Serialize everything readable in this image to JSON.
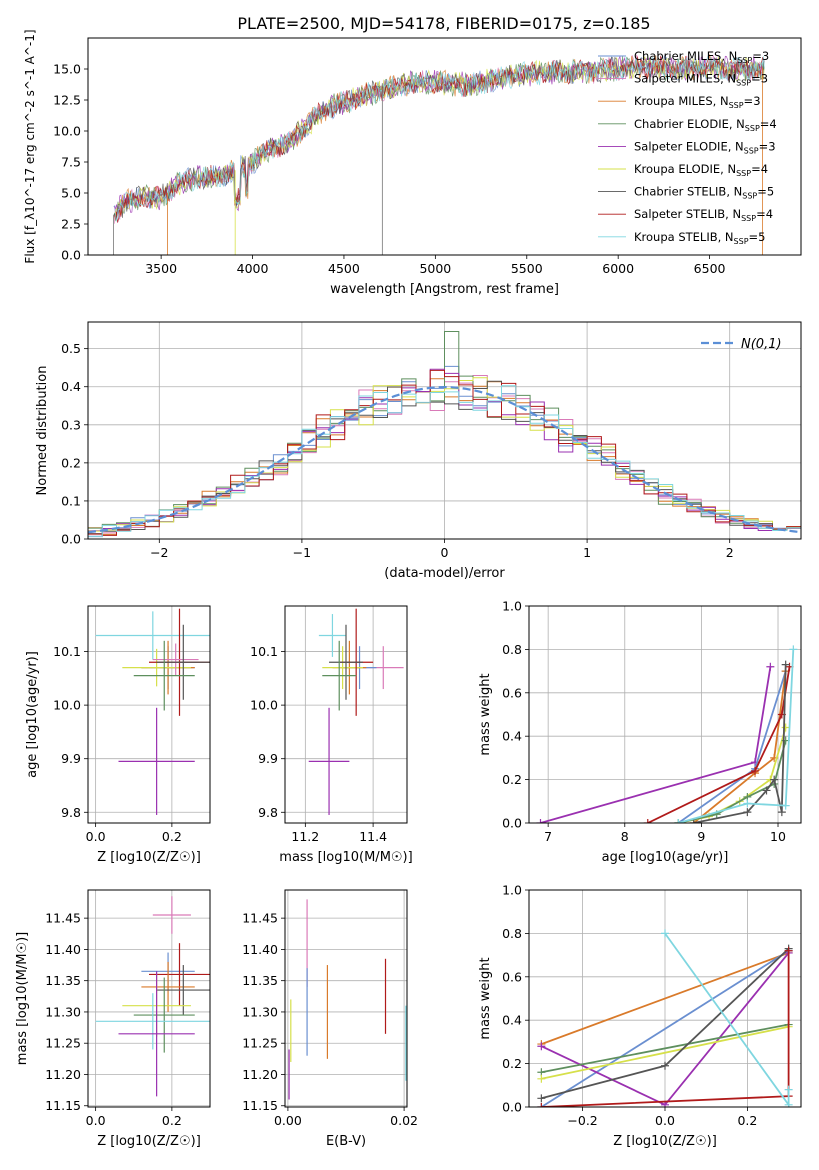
{
  "title": "PLATE=2500, MJD=54178, FIBERID=0175, z=0.185",
  "colors": {
    "Chabrier MILES": "#6a8fd0",
    "Salpeter MILES": "#d97ab8",
    "Kroupa MILES": "#d97a2a",
    "Chabrier ELODIE": "#5e8f5e",
    "Salpeter ELODIE": "#9a30b0",
    "Kroupa ELODIE": "#d6e04a",
    "Chabrier STELIB": "#555555",
    "Salpeter STELIB": "#b01a1a",
    "Kroupa STELIB": "#7fd6e0"
  },
  "legend": [
    {
      "name": "Chabrier MILES",
      "nssp": "3"
    },
    {
      "name": "Salpeter MILES",
      "nssp": "3"
    },
    {
      "name": "Kroupa MILES",
      "nssp": "3"
    },
    {
      "name": "Chabrier ELODIE",
      "nssp": "4"
    },
    {
      "name": "Salpeter ELODIE",
      "nssp": "3"
    },
    {
      "name": "Kroupa ELODIE",
      "nssp": "4"
    },
    {
      "name": "Chabrier STELIB",
      "nssp": "5"
    },
    {
      "name": "Salpeter STELIB",
      "nssp": "4"
    },
    {
      "name": "Kroupa STELIB",
      "nssp": "5"
    }
  ],
  "chart_data": [
    {
      "id": "spectrum",
      "type": "line",
      "xlabel": "wavelength [Angstrom, rest frame]",
      "ylabel": "Flux [f_λ10^-17 erg cm^-2 s^-1 A^-1]",
      "xlim": [
        3100,
        7000
      ],
      "ylim": [
        0,
        17.5
      ],
      "xticks": [
        3500,
        4000,
        4500,
        5000,
        5500,
        6000,
        6500
      ],
      "yticks": [
        0.0,
        2.5,
        5.0,
        7.5,
        10.0,
        12.5,
        15.0
      ],
      "legend_placement": "right",
      "continuum": [
        [
          3240,
          3.2
        ],
        [
          3300,
          4.2
        ],
        [
          3400,
          4.8
        ],
        [
          3500,
          4.6
        ],
        [
          3600,
          5.8
        ],
        [
          3700,
          6.3
        ],
        [
          3800,
          6.2
        ],
        [
          3900,
          6.8
        ],
        [
          4000,
          7.5
        ],
        [
          4100,
          8.6
        ],
        [
          4200,
          9.1
        ],
        [
          4300,
          10.5
        ],
        [
          4400,
          11.8
        ],
        [
          4500,
          12.3
        ],
        [
          4600,
          12.8
        ],
        [
          4700,
          13.3
        ],
        [
          4800,
          13.6
        ],
        [
          4900,
          13.9
        ],
        [
          5000,
          14.0
        ],
        [
          5100,
          13.8
        ],
        [
          5200,
          13.7
        ],
        [
          5300,
          14.1
        ],
        [
          5400,
          14.4
        ],
        [
          5500,
          14.6
        ],
        [
          5600,
          14.7
        ],
        [
          5700,
          14.8
        ],
        [
          5800,
          14.8
        ],
        [
          5900,
          14.9
        ],
        [
          6000,
          15.0
        ],
        [
          6100,
          15.2
        ],
        [
          6200,
          15.1
        ],
        [
          6300,
          15.0
        ],
        [
          6400,
          15.1
        ],
        [
          6500,
          15.2
        ],
        [
          6600,
          15.0
        ],
        [
          6700,
          15.0
        ],
        [
          6800,
          15.1
        ]
      ]
    },
    {
      "id": "residuals",
      "type": "bar",
      "xlabel": "(data-model)/error",
      "ylabel": "Normed distribution",
      "xlim": [
        -2.5,
        2.5
      ],
      "ylim": [
        0,
        0.57
      ],
      "xticks": [
        -2,
        -1,
        0,
        1,
        2
      ],
      "yticks": [
        0.0,
        0.1,
        0.2,
        0.3,
        0.4,
        0.5
      ],
      "grid": true,
      "legend_label": "N(0,1)",
      "legend_placement": "top-right"
    },
    {
      "id": "age_vs_Z",
      "type": "scatter",
      "xlabel": "Z [log10(Z/Z☉)]",
      "ylabel": "age  [log10(age/yr)]",
      "xlim": [
        -0.02,
        0.3
      ],
      "ylim": [
        9.78,
        10.185
      ],
      "xticks": [
        0.0,
        0.2
      ],
      "yticks": [
        9.8,
        9.9,
        10.0,
        10.1
      ],
      "grid": true,
      "points": [
        {
          "s": "Kroupa STELIB",
          "x": 0.15,
          "xe": 0.15,
          "y": 10.13,
          "ye": 0.045
        },
        {
          "s": "Chabrier MILES",
          "x": 0.19,
          "xe": 0.07,
          "y": 10.07,
          "ye": 0.04
        },
        {
          "s": "Kroupa MILES",
          "x": 0.19,
          "xe": 0.07,
          "y": 10.07,
          "ye": 0.05
        },
        {
          "s": "Kroupa ELODIE",
          "x": 0.16,
          "xe": 0.09,
          "y": 10.07,
          "ye": 0.035
        },
        {
          "s": "Salpeter STELIB",
          "x": 0.22,
          "xe": 0.08,
          "y": 10.08,
          "ye": 0.1
        },
        {
          "s": "Salpeter MILES",
          "x": 0.21,
          "xe": 0.06,
          "y": 10.085,
          "ye": 0.03
        },
        {
          "s": "Chabrier STELIB",
          "x": 0.23,
          "xe": 0.07,
          "y": 10.08,
          "ye": 0.07
        },
        {
          "s": "Chabrier ELODIE",
          "x": 0.18,
          "xe": 0.08,
          "y": 10.055,
          "ye": 0.065
        },
        {
          "s": "Salpeter ELODIE",
          "x": 0.16,
          "xe": 0.1,
          "y": 9.895,
          "ye": 0.1
        }
      ]
    },
    {
      "id": "age_vs_mass",
      "type": "scatter",
      "xlabel": "mass [log10(M/M☉)]",
      "ylabel": "",
      "xlim": [
        11.14,
        11.5
      ],
      "ylim": [
        9.78,
        10.185
      ],
      "xticks": [
        11.2,
        11.4
      ],
      "yticks": [
        9.8,
        9.9,
        10.0,
        10.1
      ],
      "grid": true,
      "points": [
        {
          "s": "Kroupa STELIB",
          "x": 11.28,
          "xe": 0.04,
          "y": 10.13,
          "ye": 0.04
        },
        {
          "s": "Salpeter MILES",
          "x": 11.43,
          "xe": 0.06,
          "y": 10.07,
          "ye": 0.04
        },
        {
          "s": "Chabrier MILES",
          "x": 11.36,
          "xe": 0.05,
          "y": 10.07,
          "ye": 0.04
        },
        {
          "s": "Kroupa MILES",
          "x": 11.33,
          "xe": 0.05,
          "y": 10.07,
          "ye": 0.05
        },
        {
          "s": "Kroupa ELODIE",
          "x": 11.31,
          "xe": 0.06,
          "y": 10.07,
          "ye": 0.04
        },
        {
          "s": "Salpeter STELIB",
          "x": 11.35,
          "xe": 0.05,
          "y": 10.08,
          "ye": 0.1
        },
        {
          "s": "Chabrier STELIB",
          "x": 11.32,
          "xe": 0.05,
          "y": 10.08,
          "ye": 0.07
        },
        {
          "s": "Chabrier ELODIE",
          "x": 11.3,
          "xe": 0.05,
          "y": 10.055,
          "ye": 0.065
        },
        {
          "s": "Salpeter ELODIE",
          "x": 11.27,
          "xe": 0.06,
          "y": 9.895,
          "ye": 0.1
        }
      ]
    },
    {
      "id": "mw_vs_age",
      "type": "line",
      "xlabel": "age  [log10(age/yr)]",
      "ylabel": "mass weight",
      "xlim": [
        6.75,
        10.3
      ],
      "ylim": [
        0,
        1
      ],
      "xticks": [
        7,
        8,
        9,
        10
      ],
      "yticks": [
        0.0,
        0.2,
        0.4,
        0.6,
        0.8,
        1.0
      ],
      "grid": true,
      "series": [
        {
          "s": "Salpeter ELODIE",
          "pts": [
            [
              6.9,
              0.0
            ],
            [
              9.7,
              0.28
            ],
            [
              9.9,
              0.72
            ]
          ]
        },
        {
          "s": "Chabrier MILES",
          "pts": [
            [
              8.7,
              0.0
            ],
            [
              9.7,
              0.25
            ],
            [
              10.1,
              0.7
            ]
          ]
        },
        {
          "s": "Kroupa MILES",
          "pts": [
            [
              8.9,
              0.0
            ],
            [
              9.7,
              0.23
            ],
            [
              9.95,
              0.3
            ],
            [
              10.1,
              0.7
            ]
          ]
        },
        {
          "s": "Salpeter STELIB",
          "pts": [
            [
              8.3,
              0.0
            ],
            [
              9.7,
              0.24
            ],
            [
              10.05,
              0.5
            ],
            [
              10.15,
              0.72
            ]
          ]
        },
        {
          "s": "Kroupa ELODIE",
          "pts": [
            [
              8.7,
              0.0
            ],
            [
              9.1,
              0.03
            ],
            [
              9.5,
              0.1
            ],
            [
              9.9,
              0.2
            ],
            [
              10.1,
              0.44
            ]
          ]
        },
        {
          "s": "Chabrier ELODIE",
          "pts": [
            [
              8.7,
              0.0
            ],
            [
              9.2,
              0.04
            ],
            [
              9.6,
              0.12
            ],
            [
              9.95,
              0.18
            ],
            [
              10.1,
              0.38
            ]
          ]
        },
        {
          "s": "Chabrier STELIB",
          "pts": [
            [
              8.9,
              0.0
            ],
            [
              9.6,
              0.05
            ],
            [
              9.85,
              0.15
            ],
            [
              9.95,
              0.2
            ],
            [
              10.05,
              0.05
            ],
            [
              10.1,
              0.73
            ]
          ]
        },
        {
          "s": "Kroupa STELIB",
          "pts": [
            [
              8.7,
              0.0
            ],
            [
              9.6,
              0.09
            ],
            [
              10.1,
              0.08
            ],
            [
              10.2,
              0.8
            ]
          ]
        }
      ]
    },
    {
      "id": "mass_vs_Z",
      "type": "scatter",
      "xlabel": "Z [log10(Z/Z☉)]",
      "ylabel": "mass [log10(M/M☉)]",
      "xlim": [
        -0.02,
        0.3
      ],
      "ylim": [
        11.148,
        11.495
      ],
      "xticks": [
        0.0,
        0.2
      ],
      "yticks": [
        11.15,
        11.2,
        11.25,
        11.3,
        11.35,
        11.4,
        11.45
      ],
      "grid": true,
      "points": [
        {
          "s": "Salpeter MILES",
          "x": 0.2,
          "xe": 0.05,
          "y": 11.455,
          "ye": 0.03
        },
        {
          "s": "Chabrier MILES",
          "x": 0.19,
          "xe": 0.07,
          "y": 11.365,
          "ye": 0.03
        },
        {
          "s": "Salpeter STELIB",
          "x": 0.22,
          "xe": 0.08,
          "y": 11.36,
          "ye": 0.05
        },
        {
          "s": "Kroupa MILES",
          "x": 0.19,
          "xe": 0.07,
          "y": 11.34,
          "ye": 0.04
        },
        {
          "s": "Chabrier STELIB",
          "x": 0.23,
          "xe": 0.07,
          "y": 11.335,
          "ye": 0.04
        },
        {
          "s": "Kroupa ELODIE",
          "x": 0.16,
          "xe": 0.09,
          "y": 11.31,
          "ye": 0.05
        },
        {
          "s": "Chabrier ELODIE",
          "x": 0.18,
          "xe": 0.08,
          "y": 11.295,
          "ye": 0.06
        },
        {
          "s": "Kroupa STELIB",
          "x": 0.15,
          "xe": 0.15,
          "y": 11.285,
          "ye": 0.045
        },
        {
          "s": "Salpeter ELODIE",
          "x": 0.16,
          "xe": 0.1,
          "y": 11.265,
          "ye": 0.1
        }
      ]
    },
    {
      "id": "mass_vs_ebv",
      "type": "scatter",
      "xlabel": "E(B-V)",
      "ylabel": "",
      "xlim": [
        -0.0005,
        0.0205
      ],
      "ylim": [
        11.148,
        11.495
      ],
      "xticks": [
        0.0,
        0.02
      ],
      "yticks": [
        11.15,
        11.2,
        11.25,
        11.3,
        11.35,
        11.4,
        11.45
      ],
      "grid": true,
      "points": [
        {
          "s": "Salpeter ELODIE",
          "x": 0.0002,
          "y": 11.2,
          "ye": 0.04
        },
        {
          "s": "Kroupa ELODIE",
          "x": 0.0005,
          "y": 11.27,
          "ye": 0.05
        },
        {
          "s": "Salpeter MILES",
          "x": 0.0033,
          "y": 11.41,
          "ye": 0.07
        },
        {
          "s": "Chabrier MILES",
          "x": 0.0033,
          "y": 11.3,
          "ye": 0.07
        },
        {
          "s": "Kroupa MILES",
          "x": 0.0068,
          "y": 11.3,
          "ye": 0.075
        },
        {
          "s": "Salpeter STELIB",
          "x": 0.0168,
          "y": 11.325,
          "ye": 0.06
        },
        {
          "s": "Kroupa STELIB",
          "x": 0.0203,
          "y": 11.25,
          "ye": 0.06
        }
      ]
    },
    {
      "id": "mw_vs_Z",
      "type": "line",
      "xlabel": "Z [log10(Z/Z☉)]",
      "ylabel": "mass weight",
      "xlim": [
        -0.33,
        0.33
      ],
      "ylim": [
        0,
        1
      ],
      "xticks": [
        -0.2,
        0.0,
        0.2
      ],
      "yticks": [
        0.0,
        0.2,
        0.4,
        0.6,
        0.8,
        1.0
      ],
      "grid": true,
      "series": [
        {
          "s": "Kroupa MILES",
          "pts": [
            [
              -0.3,
              0.29
            ],
            [
              0.3,
              0.71
            ]
          ]
        },
        {
          "s": "Chabrier MILES",
          "pts": [
            [
              -0.3,
              0.0
            ],
            [
              0.3,
              0.72
            ]
          ]
        },
        {
          "s": "Salpeter ELODIE",
          "pts": [
            [
              -0.3,
              0.28
            ],
            [
              0.0,
              0.01
            ],
            [
              0.3,
              0.71
            ]
          ]
        },
        {
          "s": "Chabrier ELODIE",
          "pts": [
            [
              -0.3,
              0.16
            ],
            [
              0.3,
              0.38
            ]
          ]
        },
        {
          "s": "Kroupa ELODIE",
          "pts": [
            [
              -0.3,
              0.13
            ],
            [
              0.3,
              0.37
            ]
          ]
        },
        {
          "s": "Chabrier STELIB",
          "pts": [
            [
              -0.3,
              0.04
            ],
            [
              0.0,
              0.19
            ],
            [
              0.3,
              0.73
            ]
          ]
        },
        {
          "s": "Salpeter STELIB",
          "pts": [
            [
              -0.3,
              0.0
            ],
            [
              0.3,
              0.05
            ],
            [
              0.3,
              0.72
            ]
          ]
        },
        {
          "s": "Kroupa STELIB",
          "pts": [
            [
              0.0,
              0.8
            ],
            [
              0.3,
              0.01
            ],
            [
              0.3,
              0.08
            ]
          ]
        }
      ]
    }
  ]
}
